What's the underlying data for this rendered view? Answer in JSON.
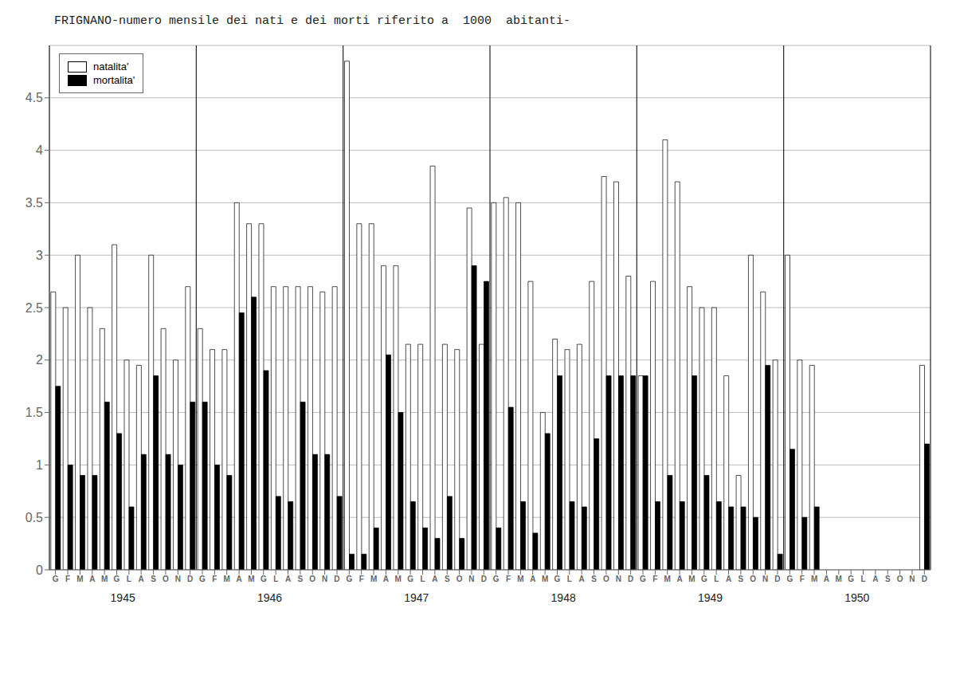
{
  "chart_data": {
    "type": "bar",
    "title": "FRIGNANO-numero mensile dei nati e dei morti riferito a  1000  abitanti-",
    "categories": [
      "G",
      "F",
      "M",
      "A",
      "M",
      "G",
      "L",
      "A",
      "S",
      "O",
      "N",
      "D",
      "G",
      "F",
      "M",
      "A",
      "M",
      "G",
      "L",
      "A",
      "S",
      "O",
      "N",
      "D",
      "G",
      "F",
      "M",
      "A",
      "M",
      "G",
      "L",
      "A",
      "S",
      "O",
      "N",
      "D",
      "G",
      "F",
      "M",
      "A",
      "M",
      "G",
      "L",
      "A",
      "S",
      "O",
      "N",
      "D",
      "G",
      "F",
      "M",
      "A",
      "M",
      "G",
      "L",
      "A",
      "S",
      "O",
      "N",
      "D",
      "G",
      "F",
      "M",
      "A",
      "M",
      "G",
      "L",
      "A",
      "S",
      "O",
      "N",
      "D"
    ],
    "series": [
      {
        "name": "natalita'",
        "color": "#ffffff",
        "values": [
          2.65,
          2.5,
          3.0,
          2.5,
          2.3,
          3.1,
          2.0,
          1.95,
          3.0,
          2.3,
          2.0,
          2.7,
          2.3,
          2.1,
          2.1,
          3.5,
          3.3,
          3.3,
          2.7,
          2.7,
          2.7,
          2.7,
          2.65,
          2.7,
          4.85,
          3.3,
          3.3,
          2.9,
          2.9,
          2.15,
          2.15,
          3.85,
          2.15,
          2.1,
          3.45,
          2.15,
          3.5,
          3.55,
          3.5,
          2.75,
          1.5,
          2.2,
          2.1,
          2.15,
          2.75,
          3.75,
          3.7,
          2.8,
          1.85,
          2.75,
          4.1,
          3.7,
          2.7,
          2.5,
          2.5,
          1.85,
          0.9,
          3.0,
          2.65,
          2.0,
          3.0,
          2.0,
          1.95,
          0.0,
          0.0,
          0.0,
          0.0,
          0.0,
          0.0,
          0.0,
          0.0,
          1.95
        ]
      },
      {
        "name": "mortalita'",
        "color": "#000000",
        "values": [
          1.75,
          1.0,
          0.9,
          0.9,
          1.6,
          1.3,
          0.6,
          1.1,
          1.85,
          1.1,
          1.0,
          1.6,
          1.6,
          1.0,
          0.9,
          2.45,
          2.6,
          1.9,
          0.7,
          0.65,
          1.6,
          1.1,
          1.1,
          0.7,
          0.15,
          0.15,
          0.4,
          2.05,
          1.5,
          0.65,
          0.4,
          0.3,
          0.7,
          0.3,
          2.9,
          2.75,
          0.4,
          1.55,
          0.65,
          0.35,
          1.3,
          1.85,
          0.65,
          0.6,
          1.25,
          1.85,
          1.85,
          1.85,
          1.85,
          0.65,
          0.9,
          0.65,
          1.85,
          0.9,
          0.65,
          0.6,
          0.6,
          0.5,
          1.95,
          0.15,
          1.15,
          0.5,
          0.6,
          0.0,
          0.0,
          0.0,
          0.0,
          0.0,
          0.0,
          0.0,
          0.0,
          1.2
        ]
      }
    ],
    "annotations": [
      "1945",
      "1946",
      "1947",
      "1948",
      "1949",
      "1950"
    ],
    "ylim": [
      0,
      5
    ],
    "yticks": [
      0,
      0.5,
      1,
      1.5,
      2,
      2.5,
      3,
      3.5,
      4,
      4.5
    ],
    "grid": true,
    "legend": "upper left"
  }
}
